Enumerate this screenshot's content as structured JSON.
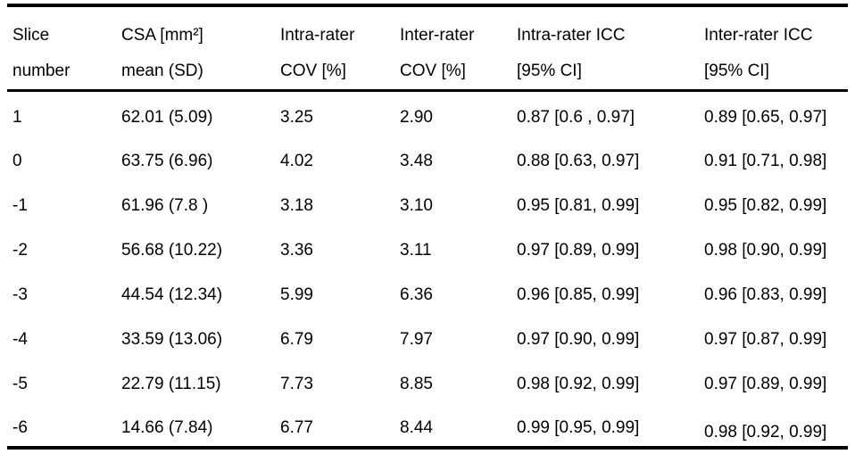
{
  "table": {
    "columns": [
      {
        "line1": "Slice",
        "line2": "number"
      },
      {
        "line1": "CSA [mm²]",
        "line2": "mean (SD)"
      },
      {
        "line1": "Intra-rater",
        "line2": "COV [%]"
      },
      {
        "line1": "Inter-rater",
        "line2": "COV [%]"
      },
      {
        "line1": "Intra-rater ICC",
        "line2": "[95% CI]"
      },
      {
        "line1": "Inter-rater ICC",
        "line2": "[95% CI]"
      }
    ],
    "rows": [
      [
        "1",
        "62.01 (5.09)",
        "3.25",
        "2.90",
        "0.87 [0.6 , 0.97]",
        "0.89 [0.65, 0.97]"
      ],
      [
        "0",
        "63.75 (6.96)",
        "4.02",
        "3.48",
        "0.88 [0.63, 0.97]",
        "0.91 [0.71, 0.98]"
      ],
      [
        "-1",
        "61.96 (7.8 )",
        "3.18",
        "3.10",
        "0.95 [0.81, 0.99]",
        "0.95 [0.82, 0.99]"
      ],
      [
        "-2",
        "56.68 (10.22)",
        "3.36",
        "3.11",
        "0.97 [0.89, 0.99]",
        "0.98 [0.90, 0.99]"
      ],
      [
        "-3",
        "44.54 (12.34)",
        "5.99",
        "6.36",
        "0.96 [0.85, 0.99]",
        "0.96 [0.83, 0.99]"
      ],
      [
        "-4",
        "33.59 (13.06)",
        "6.79",
        "7.97",
        "0.97 [0.90, 0.99]",
        "0.97 [0.87, 0.99]"
      ],
      [
        "-5",
        "22.79 (11.15)",
        "7.73",
        "8.85",
        "0.98 [0.92, 0.99]",
        "0.97 [0.89, 0.99]"
      ],
      [
        "-6",
        "14.66 (7.84)",
        "6.77",
        "8.44",
        "0.99 [0.95, 0.99]",
        "0.98 [0.92, 0.99]"
      ]
    ]
  }
}
